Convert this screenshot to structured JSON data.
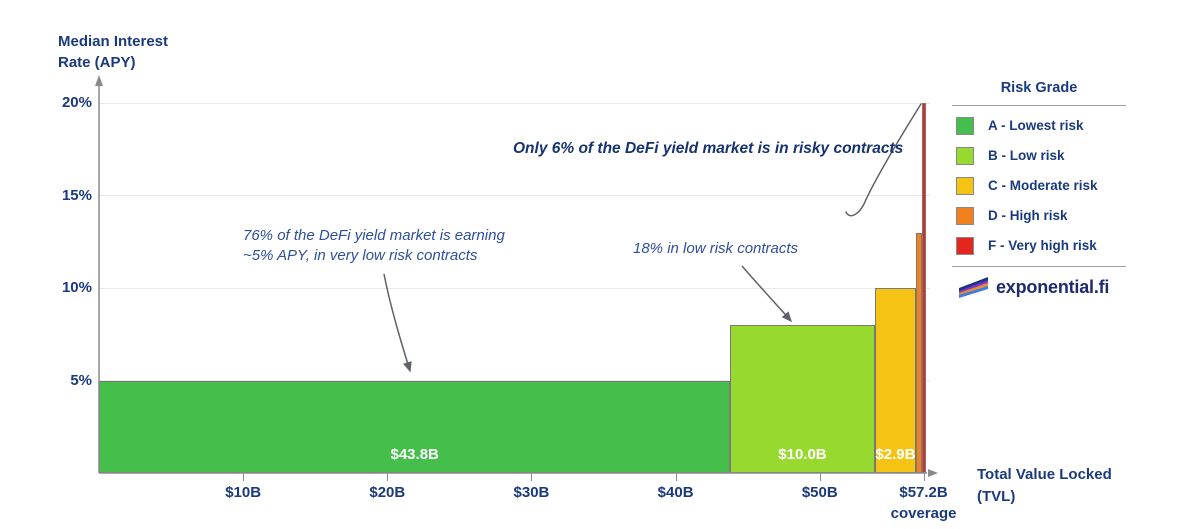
{
  "chart_data": {
    "type": "bar",
    "variant": "variable-width-bar",
    "title": "",
    "xlabel_lines": [
      "Total Value Locked",
      "(TVL)"
    ],
    "ylabel_lines": [
      "Median Interest",
      "Rate (APY)"
    ],
    "xlim_billions_usd": [
      0,
      57.2
    ],
    "ylim_pct": [
      0,
      21
    ],
    "grid": "horizontal",
    "segments": [
      {
        "grade": "A",
        "risk": "Lowest risk",
        "tvl_b": 43.8,
        "apy_pct": 5,
        "bar_label": "$43.8B",
        "color": "#45BE4B",
        "value_labeled": true
      },
      {
        "grade": "B",
        "risk": "Low risk",
        "tvl_b": 10.0,
        "apy_pct": 8,
        "bar_label": "$10.0B",
        "color": "#98D930",
        "value_labeled": true
      },
      {
        "grade": "C",
        "risk": "Moderate risk",
        "tvl_b": 2.9,
        "apy_pct": 10,
        "bar_label": "$2.9B",
        "color": "#F5C314",
        "value_labeled": true
      },
      {
        "grade": "D",
        "risk": "High risk",
        "tvl_b": 0.4,
        "apy_pct": 13,
        "bar_label": "",
        "color": "#F2801E",
        "value_labeled": false
      },
      {
        "grade": "F",
        "risk": "Very high risk",
        "tvl_b": 0.2,
        "apy_pct": 20,
        "bar_label": "",
        "color": "#E3271E",
        "value_labeled": false
      }
    ],
    "x_ticks": [
      {
        "value": 10,
        "label": "$10B"
      },
      {
        "value": 20,
        "label": "$20B"
      },
      {
        "value": 30,
        "label": "$30B"
      },
      {
        "value": 40,
        "label": "$40B"
      },
      {
        "value": 50,
        "label": "$50B"
      },
      {
        "value": 57.2,
        "label": "$57.2B",
        "sublabel": "coverage"
      }
    ],
    "y_ticks": [
      {
        "value": 5,
        "label": "5%"
      },
      {
        "value": 10,
        "label": "10%"
      },
      {
        "value": 15,
        "label": "15%"
      },
      {
        "value": 20,
        "label": "20%"
      }
    ],
    "annotations": [
      {
        "text_lines": [
          "76% of the DeFi yield market is earning",
          "~5% APY, in very low risk contracts"
        ],
        "style": "italic",
        "points_to": "grade-A bar top"
      },
      {
        "text_lines": [
          "18% in low risk contracts"
        ],
        "style": "italic",
        "points_to": "grade-B bar top"
      },
      {
        "text_lines": [
          "Only 6% of the DeFi yield market is in risky contracts"
        ],
        "style": "bold-italic",
        "points_to": "grade-D and F bars"
      }
    ],
    "legend": {
      "title": "Risk Grade",
      "position": "right",
      "items": [
        {
          "grade": "A",
          "label": "A - Lowest risk",
          "color": "#45BE4B"
        },
        {
          "grade": "B",
          "label": "B - Low risk",
          "color": "#98D930"
        },
        {
          "grade": "C",
          "label": "C - Moderate risk",
          "color": "#F5C314"
        },
        {
          "grade": "D",
          "label": "D - High risk",
          "color": "#F2801E"
        },
        {
          "grade": "F",
          "label": "F - Very high risk",
          "color": "#E3271E"
        }
      ]
    },
    "brand": {
      "name": "exponential.fi"
    }
  },
  "colors": {
    "label_navy": "#1B3A7E",
    "annotation_blue": "#2E4F9C",
    "annotation_dark_navy": "#16336F",
    "bar_value_text": "#FFFFFF",
    "axis_gray": "#8A8A8A",
    "arrow_gray": "#5F6368",
    "gridline": "#E8E8E8",
    "background": "#FFFFFF"
  }
}
